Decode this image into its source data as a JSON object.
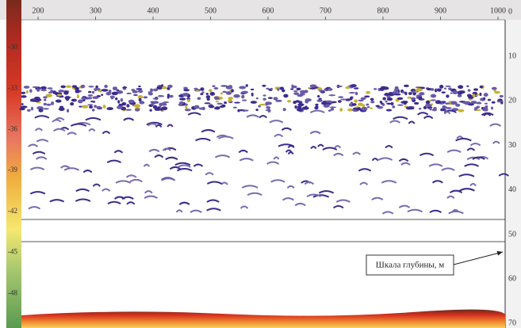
{
  "top_axis": {
    "labels": [
      "200",
      "300",
      "400",
      "500",
      "600",
      "700",
      "800",
      "900",
      "1000"
    ]
  },
  "depth_axis": {
    "labels": [
      "0",
      "10",
      "20",
      "30",
      "40",
      "50",
      "60",
      "70"
    ]
  },
  "color_scale": {
    "labels": [
      "-30",
      "-33",
      "-36",
      "-39",
      "-42",
      "-45",
      "-48"
    ]
  },
  "annotation": "Шкала глубины, м"
}
